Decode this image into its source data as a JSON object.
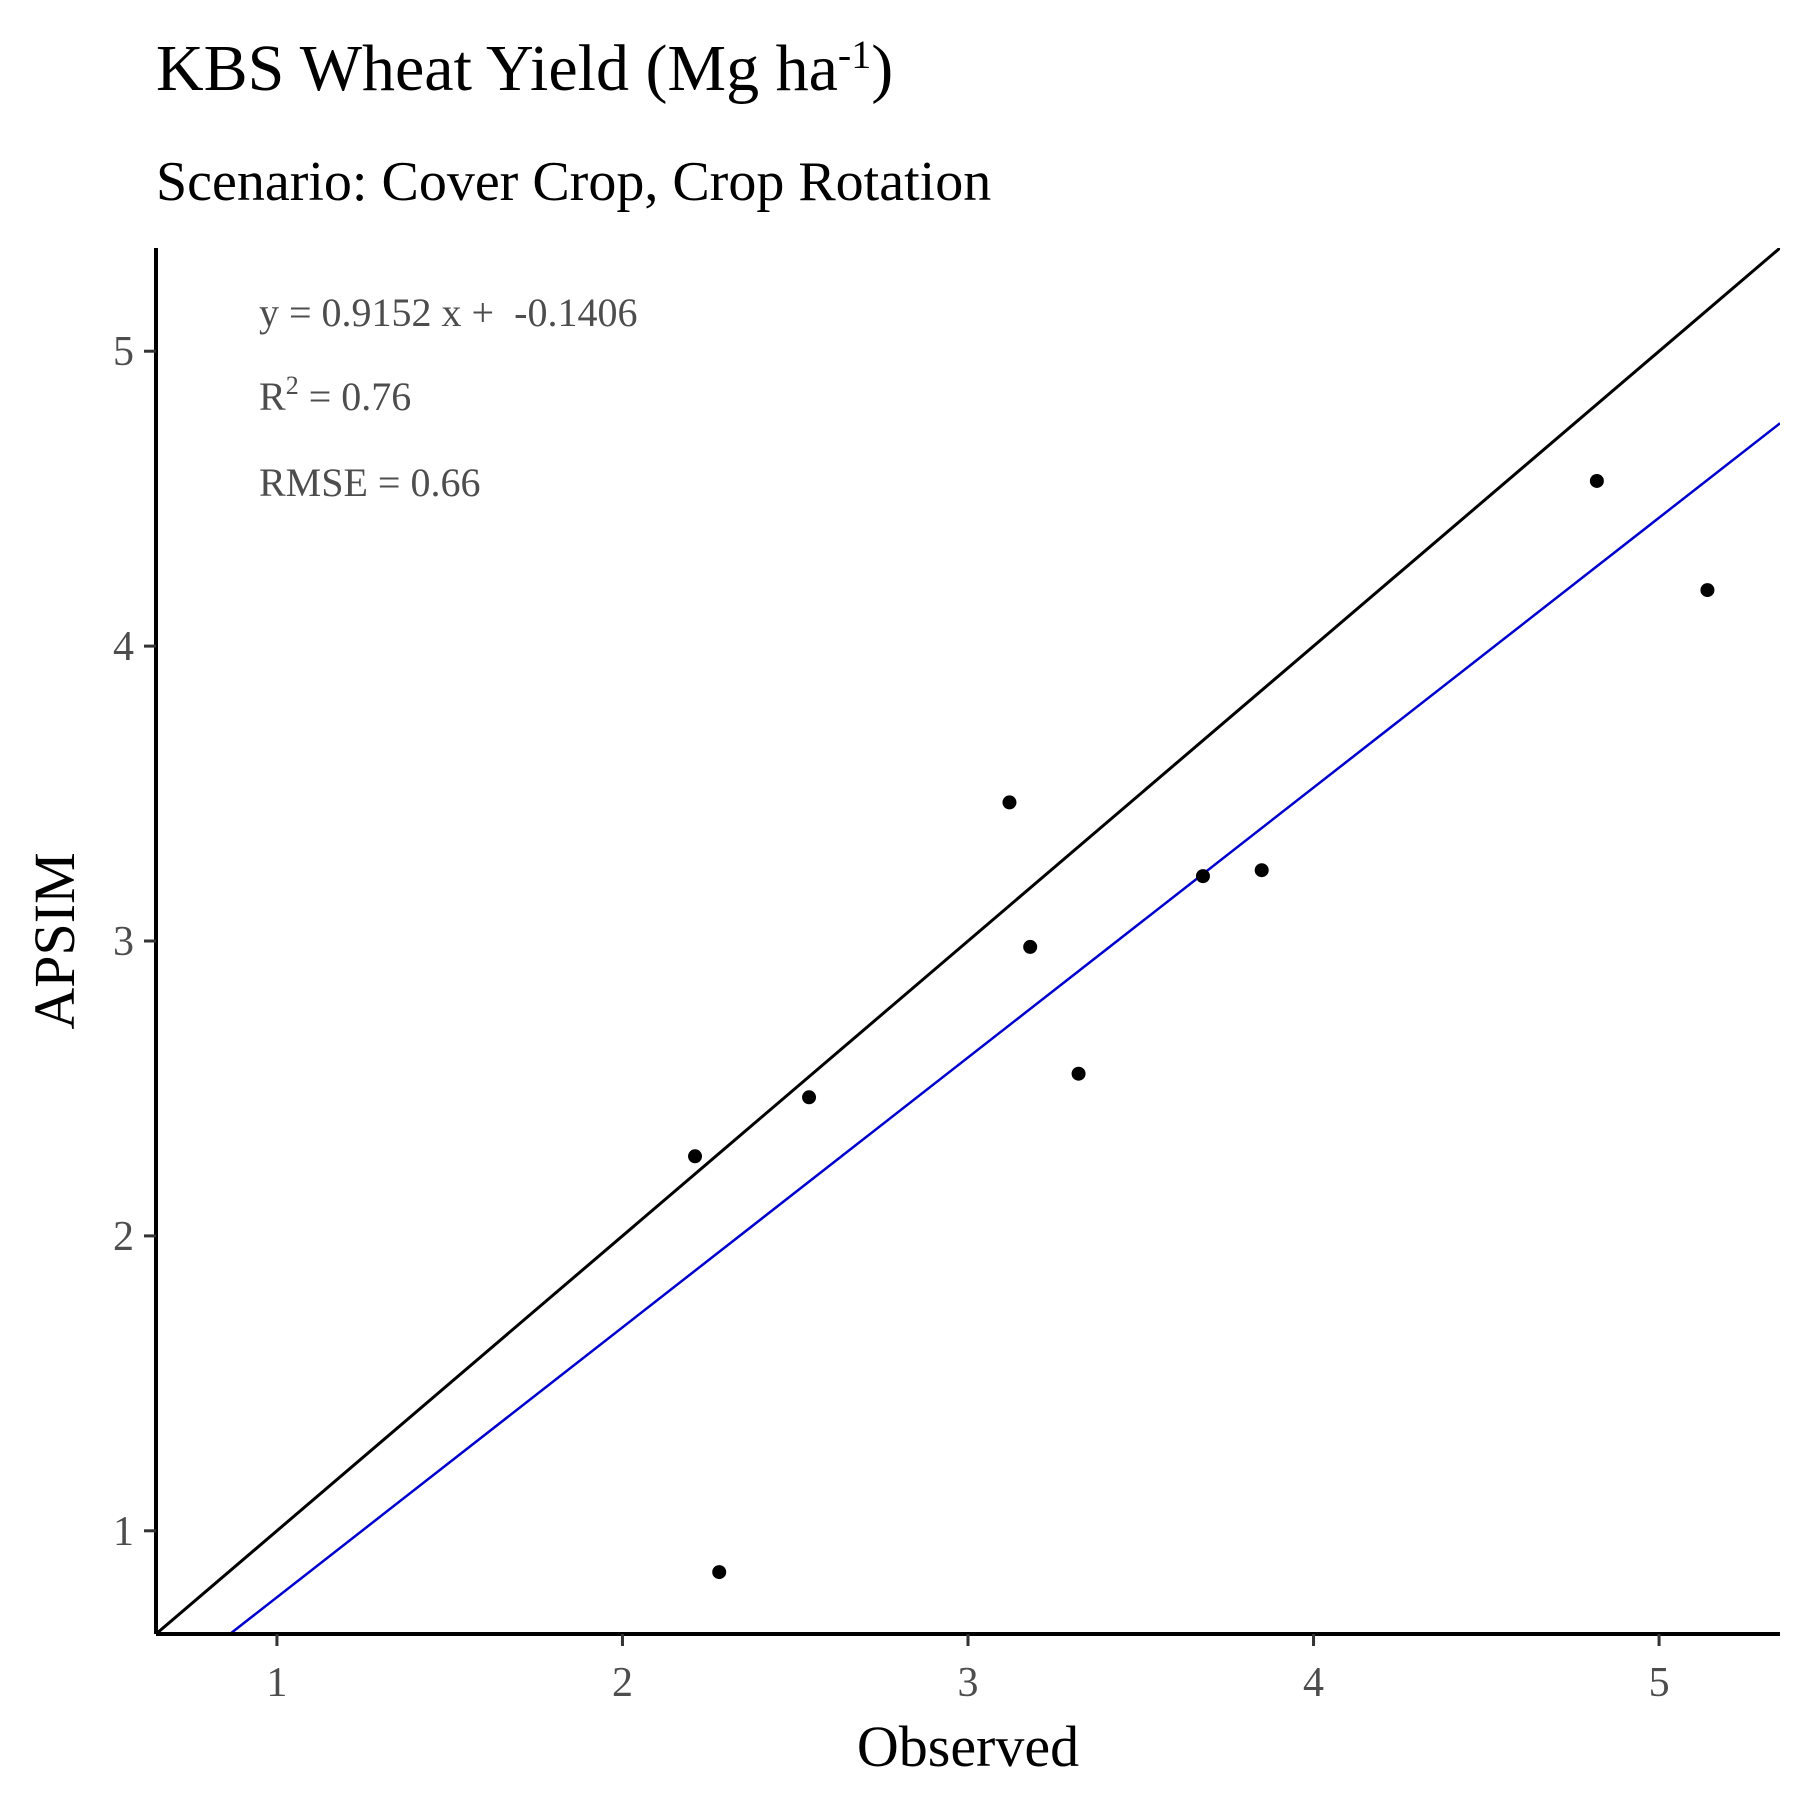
{
  "chart_data": {
    "type": "scatter",
    "title": {
      "main": "KBS Wheat Yield (Mg ha",
      "sup": "-1",
      "close": ")"
    },
    "subtitle": "Scenario: Cover Crop, Crop Rotation",
    "xlabel": "Observed",
    "ylabel": "APSIM",
    "xlim": [
      0.65,
      5.35
    ],
    "ylim": [
      0.65,
      5.35
    ],
    "x_ticks": [
      1,
      2,
      3,
      4,
      5
    ],
    "y_ticks": [
      1,
      2,
      3,
      4,
      5
    ],
    "grid": false,
    "points": [
      {
        "x": 2.21,
        "y": 2.27
      },
      {
        "x": 2.28,
        "y": 0.86
      },
      {
        "x": 2.54,
        "y": 2.47
      },
      {
        "x": 3.12,
        "y": 3.47
      },
      {
        "x": 3.18,
        "y": 2.98
      },
      {
        "x": 3.32,
        "y": 2.55
      },
      {
        "x": 3.68,
        "y": 3.22
      },
      {
        "x": 3.85,
        "y": 3.24
      },
      {
        "x": 4.82,
        "y": 4.56
      },
      {
        "x": 5.14,
        "y": 4.19
      }
    ],
    "point_color": "#000000",
    "reference_line": {
      "slope": 1,
      "intercept": 0,
      "color": "#000000"
    },
    "fit_line": {
      "slope": 0.9152,
      "intercept": -0.1406,
      "color": "#0000cc"
    },
    "annotations": {
      "equation": "y = 0.9152 x +  -0.1406",
      "r2_label": "R",
      "r2_sup": "2",
      "r2_value": " = 0.76",
      "rmse": "RMSE = 0.66"
    }
  }
}
